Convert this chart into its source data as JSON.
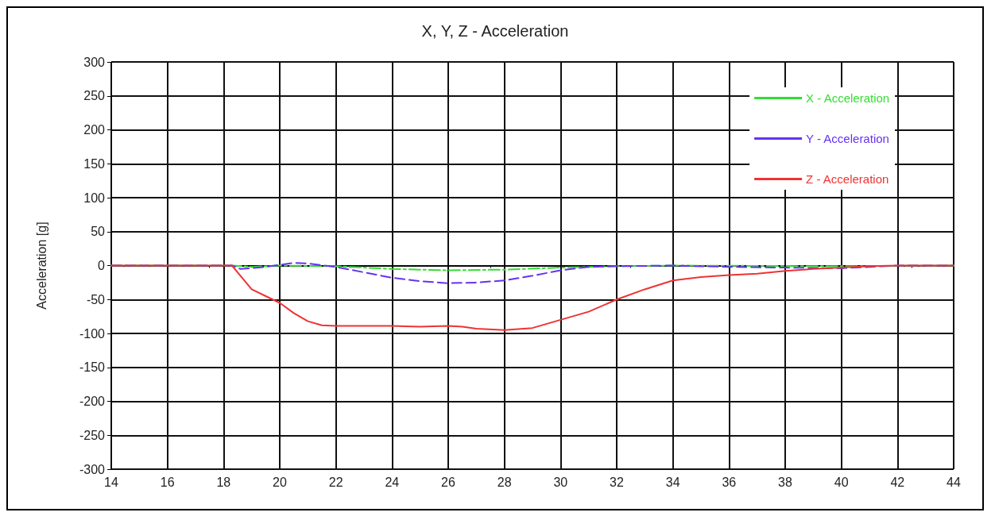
{
  "chart_data": {
    "type": "line",
    "title": "X, Y, Z - Acceleration",
    "ylabel": "Acceleration [g]",
    "xlim": [
      14,
      44
    ],
    "xticks": [
      14,
      16,
      18,
      20,
      22,
      24,
      26,
      28,
      30,
      32,
      34,
      36,
      38,
      40,
      42,
      44
    ],
    "ylim": [
      -300,
      300
    ],
    "yticks": [
      -300,
      -250,
      -200,
      -150,
      -100,
      -50,
      0,
      50,
      100,
      150,
      200,
      250,
      300
    ],
    "grid": true,
    "legend": "top right",
    "marker": "none",
    "series": [
      {
        "name": "X - Acceleration",
        "color": "#33dd33",
        "line_style": "dashdot",
        "x": [
          14,
          18.3,
          19,
          20,
          22,
          24,
          26,
          28,
          30,
          32,
          34,
          40,
          44
        ],
        "values": [
          0,
          0,
          -2,
          0,
          -1,
          -5,
          -7,
          -6,
          -3,
          -1,
          0,
          -1,
          0
        ]
      },
      {
        "name": "Y - Acceleration",
        "color": "#6633ee",
        "line_style": "dashed",
        "x": [
          14,
          18.3,
          18.6,
          19.5,
          20.5,
          21,
          22,
          23,
          24,
          25,
          26,
          27,
          28,
          29,
          30,
          31,
          32,
          34,
          36,
          38,
          40,
          41,
          42,
          44
        ],
        "values": [
          0,
          0,
          -5,
          -2,
          4,
          3,
          -2,
          -10,
          -18,
          -23,
          -26,
          -25,
          -22,
          -15,
          -7,
          -2,
          -1,
          0,
          -2,
          -3,
          -4,
          -2,
          0,
          0
        ]
      },
      {
        "name": "Z - Acceleration",
        "color": "#ee3333",
        "line_style": "solid",
        "x": [
          14,
          18.3,
          18.6,
          19,
          19.5,
          20,
          20.5,
          21,
          21.5,
          22,
          23,
          24,
          25,
          26,
          26.5,
          27,
          28,
          29,
          30,
          31,
          32,
          33,
          34,
          35,
          36,
          37,
          38,
          39,
          40,
          41,
          42,
          44
        ],
        "values": [
          0,
          0,
          -15,
          -35,
          -45,
          -55,
          -70,
          -82,
          -88,
          -89,
          -89,
          -89,
          -90,
          -89,
          -90,
          -93,
          -95,
          -92,
          -80,
          -68,
          -50,
          -35,
          -22,
          -17,
          -14,
          -12,
          -8,
          -5,
          -3,
          -1,
          0,
          0
        ]
      }
    ]
  }
}
